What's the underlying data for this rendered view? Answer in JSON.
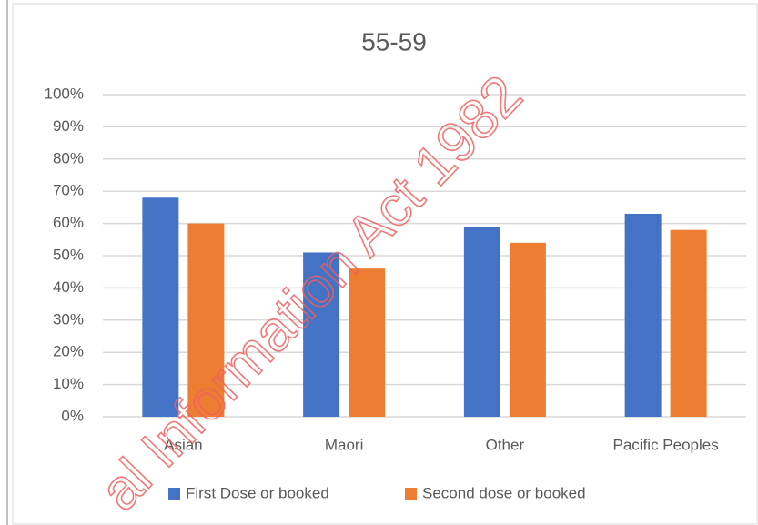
{
  "chart_data": {
    "type": "bar",
    "title": "55-59",
    "categories": [
      "Asian",
      "Maori",
      "Other",
      "Pacific Peoples"
    ],
    "series": [
      {
        "name": "First Dose or booked",
        "color": "#4472c4",
        "values": [
          68,
          51,
          59,
          63
        ]
      },
      {
        "name": "Second dose or booked",
        "color": "#ed7d31",
        "values": [
          60,
          46,
          54,
          58
        ]
      }
    ],
    "ylim": [
      0,
      100
    ],
    "yticks": [
      {
        "value": 0,
        "label": "0%"
      },
      {
        "value": 10,
        "label": "10%"
      },
      {
        "value": 20,
        "label": "20%"
      },
      {
        "value": 30,
        "label": "30%"
      },
      {
        "value": 40,
        "label": "40%"
      },
      {
        "value": 50,
        "label": "50%"
      },
      {
        "value": 60,
        "label": "60%"
      },
      {
        "value": 70,
        "label": "70%"
      },
      {
        "value": 80,
        "label": "80%"
      },
      {
        "value": 90,
        "label": "90%"
      },
      {
        "value": 100,
        "label": "100%"
      }
    ],
    "grid": true,
    "legend": "bottom",
    "watermark": "al Information Act 1982"
  }
}
